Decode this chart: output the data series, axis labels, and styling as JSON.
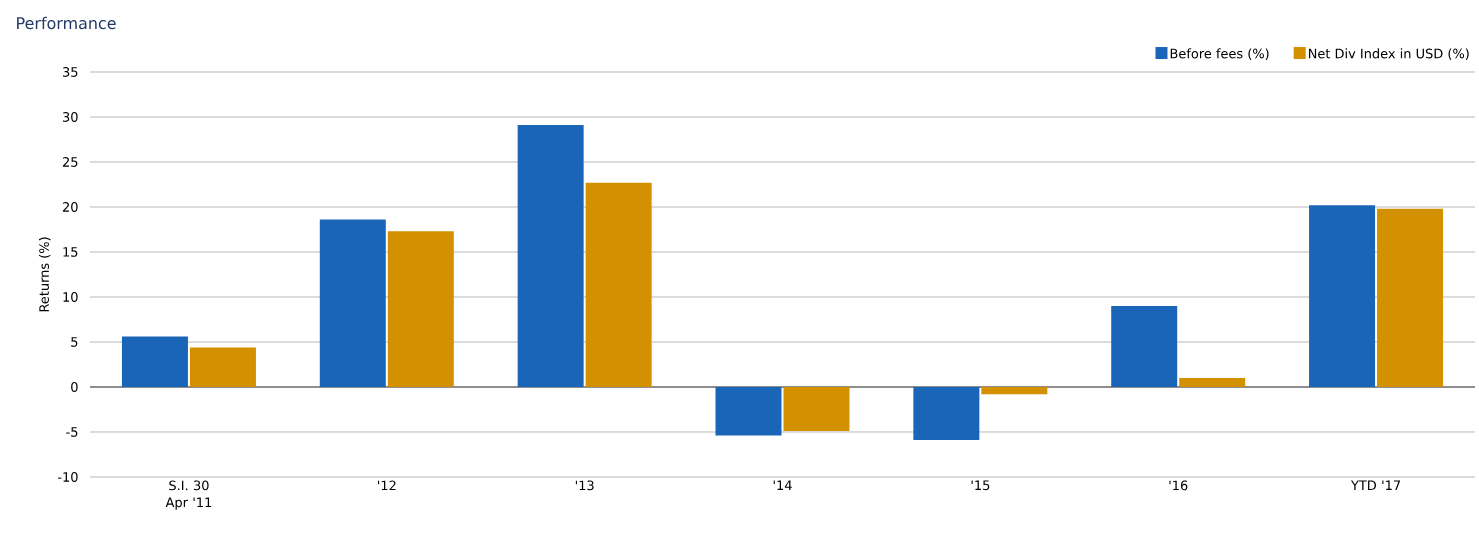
{
  "chart_data": {
    "type": "bar",
    "title": "Performance",
    "ylabel": "Returns (%)",
    "categories": [
      "S.I. 30 Apr '11",
      "'12",
      "'13",
      "'14",
      "'15",
      "'16",
      "YTD '17"
    ],
    "series": [
      {
        "name": "Before fees (%)",
        "color": "#1b65b8",
        "values": [
          5.6,
          18.6,
          29.1,
          -5.4,
          -5.9,
          9.0,
          20.2
        ]
      },
      {
        "name": "Net Div Index in USD (%)",
        "color": "#d39000",
        "values": [
          4.4,
          17.3,
          22.7,
          -4.9,
          -0.8,
          1.0,
          19.8
        ]
      }
    ],
    "ylim": [
      -10,
      35
    ],
    "yticks": [
      -10,
      -5,
      0,
      5,
      10,
      15,
      20,
      25,
      30,
      35
    ],
    "grid": "y",
    "legend": "top right"
  }
}
